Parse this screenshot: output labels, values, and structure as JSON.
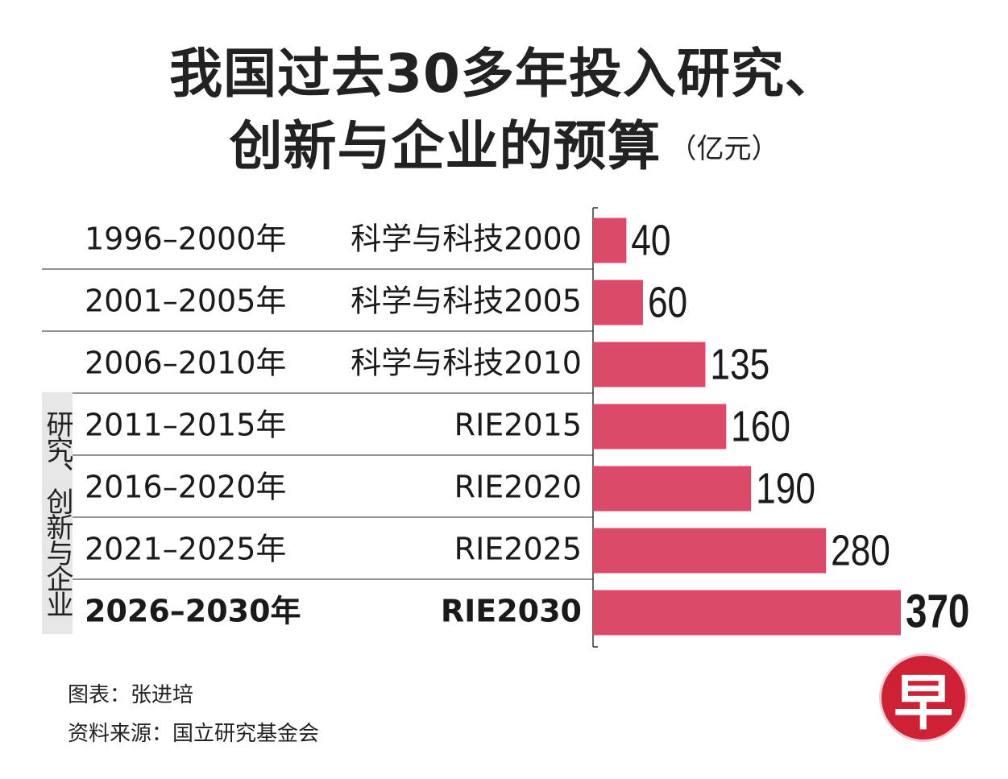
{
  "title_line1": "我国过去30多年投入研究、",
  "title_line2": "创新与企业的预算",
  "unit": "（亿元）",
  "side_label": "研究、创新与企业",
  "credit_chart": "图表：张进培",
  "credit_source": "资料来源：国立研究基金会",
  "logo_char": "早",
  "colors": {
    "bar": "#dc4a6a",
    "text": "#1a1a1a",
    "divider": "#555555"
  },
  "chart_data": {
    "type": "bar",
    "orientation": "horizontal",
    "title": "我国过去30多年投入研究、创新与企业的预算",
    "unit": "亿元",
    "categories": [
      "1996–2000年",
      "2001–2005年",
      "2006–2010年",
      "2011–2015年",
      "2016–2020年",
      "2021–2025年",
      "2026–2030年"
    ],
    "programmes": [
      "科学与科技2000",
      "科学与科技2005",
      "科学与科技2010",
      "RIE2015",
      "RIE2020",
      "RIE2025",
      "RIE2030"
    ],
    "values": [
      40,
      60,
      135,
      160,
      190,
      280,
      370
    ],
    "highlight_index": 6,
    "xlim": [
      0,
      370
    ]
  }
}
